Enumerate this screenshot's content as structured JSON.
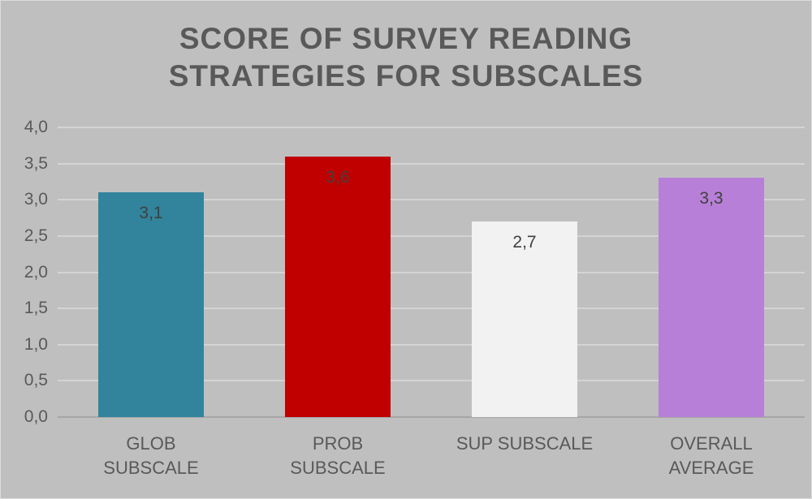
{
  "chart_data": {
    "type": "bar",
    "title": "SCORE OF SURVEY READING STRATEGIES FOR SUBSCALES",
    "categories": [
      "GLOB SUBSCALE",
      "PROB SUBSCALE",
      "SUP SUBSCALE",
      "OVERALL AVERAGE"
    ],
    "categories_display": [
      "GLOB\nSUBSCALE",
      "PROB\nSUBSCALE",
      "SUP SUBSCALE",
      "OVERALL\nAVERAGE"
    ],
    "values": [
      3.1,
      3.6,
      2.7,
      3.3
    ],
    "value_labels": [
      "3,1",
      "3,6",
      "2,7",
      "3,3"
    ],
    "bar_colors": [
      "#31849B",
      "#C00000",
      "#F2F2F2",
      "#B87FD8"
    ],
    "ylim": [
      0,
      4
    ],
    "yticks": [
      0,
      0.5,
      1,
      1.5,
      2,
      2.5,
      3,
      3.5,
      4
    ],
    "ytick_labels": [
      "0,0",
      "0,5",
      "1,0",
      "1,5",
      "2,0",
      "2,5",
      "3,0",
      "3,5",
      "4,0"
    ],
    "grid": true,
    "legend_position": "none",
    "xlabel": "",
    "ylabel": ""
  },
  "colors": {
    "background": "#BFBFBF",
    "gridline": "#D4D4D4",
    "axis_line": "#A6A6A6",
    "title_text": "#595959",
    "tick_text": "#595959",
    "data_label_text": "#404040"
  }
}
